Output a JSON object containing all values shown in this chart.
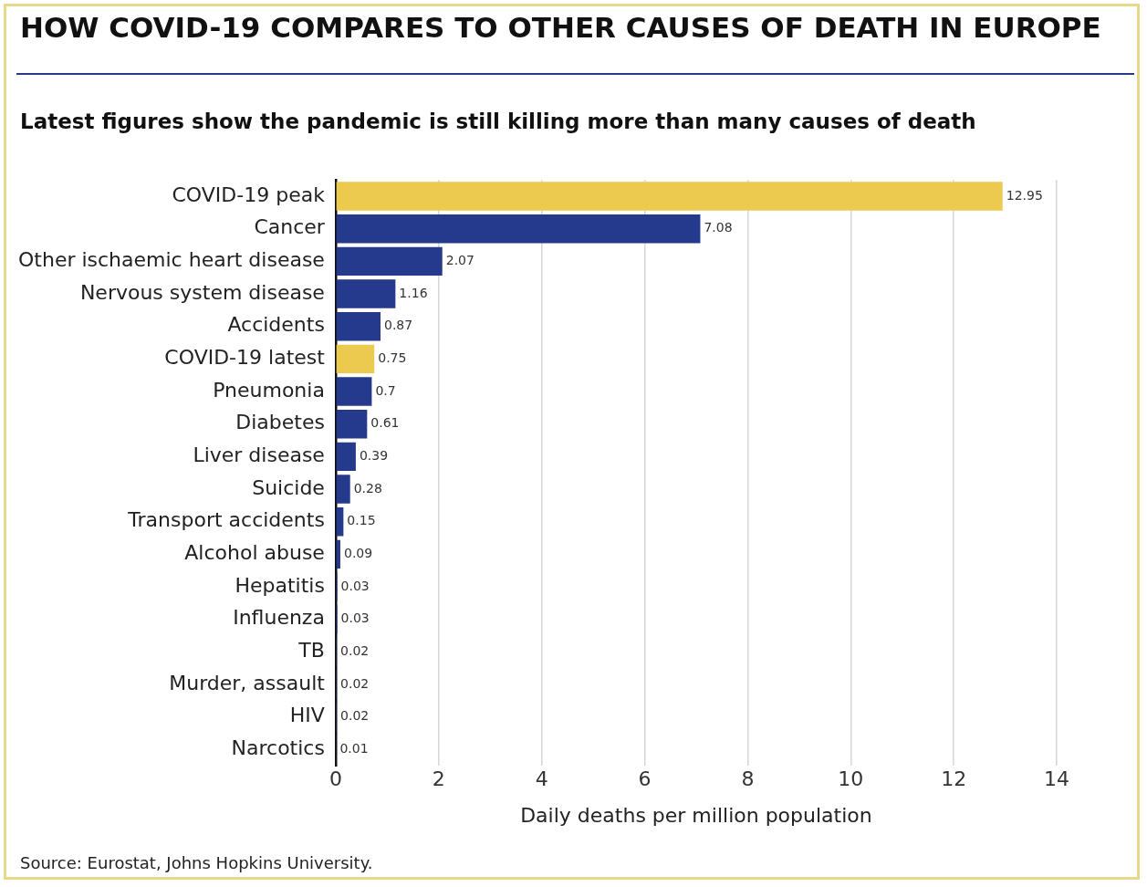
{
  "chart_data": {
    "type": "bar",
    "orientation": "horizontal",
    "title": "HOW COVID-19 COMPARES TO OTHER CAUSES OF DEATH IN EUROPE",
    "subtitle": "Latest figures show the pandemic is still killing more than many causes of death",
    "categories": [
      "COVID-19 peak",
      "Cancer",
      "Other ischaemic heart disease",
      "Nervous system disease",
      "Accidents",
      "COVID-19 latest",
      "Pneumonia",
      "Diabetes",
      "Liver disease",
      "Suicide",
      "Transport accidents",
      "Alcohol abuse",
      "Hepatitis",
      "Influenza",
      "TB",
      "Murder, assault",
      "HIV",
      "Narcotics"
    ],
    "values": [
      12.95,
      7.08,
      2.07,
      1.16,
      0.87,
      0.75,
      0.7,
      0.61,
      0.39,
      0.28,
      0.15,
      0.09,
      0.03,
      0.03,
      0.02,
      0.02,
      0.02,
      0.01
    ],
    "colors": [
      "#ecc94f",
      "#253a8c",
      "#253a8c",
      "#253a8c",
      "#253a8c",
      "#ecc94f",
      "#253a8c",
      "#253a8c",
      "#253a8c",
      "#253a8c",
      "#253a8c",
      "#253a8c",
      "#253a8c",
      "#253a8c",
      "#253a8c",
      "#253a8c",
      "#253a8c",
      "#253a8c"
    ],
    "xlim": [
      0,
      14
    ],
    "xticks": [
      0,
      2,
      4,
      6,
      8,
      10,
      12,
      14
    ],
    "xlabel": "Daily deaths per million population",
    "grid": "x",
    "data_labels": true,
    "annotations": [
      "Source: Eurostat, Johns Hopkins University."
    ]
  }
}
